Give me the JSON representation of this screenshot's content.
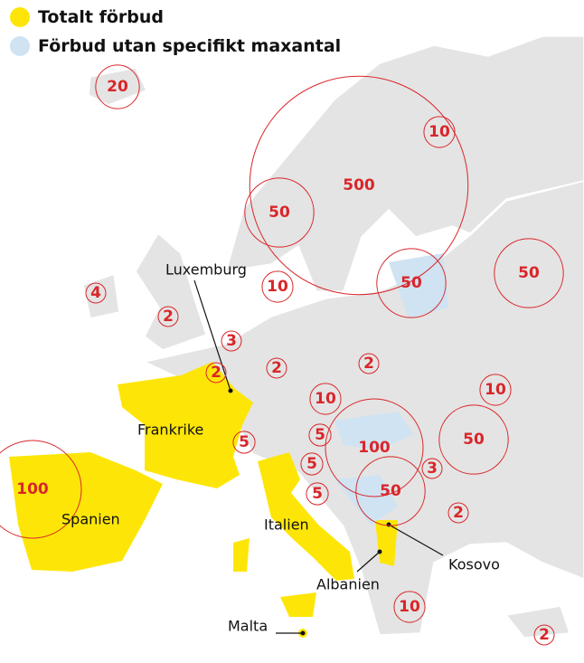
{
  "legend": [
    {
      "label": "Totalt förbud",
      "color": "#fde607"
    },
    {
      "label": "Förbud utan specifikt maxantal",
      "color": "#cfe3f2"
    }
  ],
  "markers": [
    {
      "value": 20
    },
    {
      "value": 10
    },
    {
      "value": 500
    },
    {
      "value": 50
    },
    {
      "value": 50
    },
    {
      "value": 50
    },
    {
      "value": 10
    },
    {
      "value": 4
    },
    {
      "value": 2
    },
    {
      "value": 3
    },
    {
      "value": 2
    },
    {
      "value": 2
    },
    {
      "value": 2
    },
    {
      "value": 10
    },
    {
      "value": 10
    },
    {
      "value": 5
    },
    {
      "value": 5
    },
    {
      "value": 100
    },
    {
      "value": 50
    },
    {
      "value": 3
    },
    {
      "value": 5
    },
    {
      "value": 50
    },
    {
      "value": 5
    },
    {
      "value": 2
    },
    {
      "value": 100
    },
    {
      "value": 10
    },
    {
      "value": 2
    }
  ],
  "places": [
    {
      "label": "Luxemburg"
    },
    {
      "label": "Frankrike"
    },
    {
      "label": "Spanien"
    },
    {
      "label": "Italien"
    },
    {
      "label": "Kosovo"
    },
    {
      "label": "Albanien"
    },
    {
      "label": "Malta"
    }
  ]
}
